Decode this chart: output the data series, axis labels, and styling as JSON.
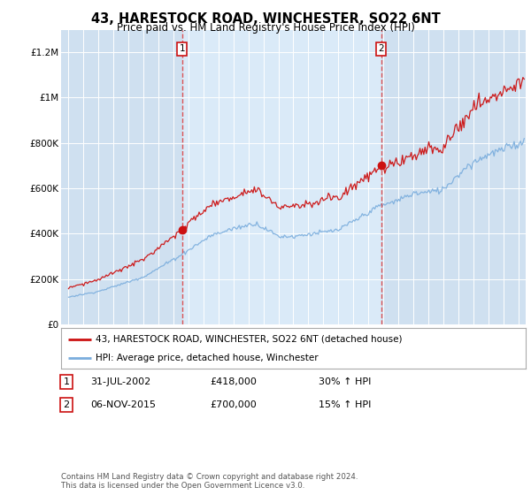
{
  "title": "43, HARESTOCK ROAD, WINCHESTER, SO22 6NT",
  "subtitle": "Price paid vs. HM Land Registry's House Price Index (HPI)",
  "legend_line1": "43, HARESTOCK ROAD, WINCHESTER, SO22 6NT (detached house)",
  "legend_line2": "HPI: Average price, detached house, Winchester",
  "table": [
    {
      "num": "1",
      "date": "31-JUL-2002",
      "price": "£418,000",
      "hpi": "30% ↑ HPI"
    },
    {
      "num": "2",
      "date": "06-NOV-2015",
      "price": "£700,000",
      "hpi": "15% ↑ HPI"
    }
  ],
  "footnote1": "Contains HM Land Registry data © Crown copyright and database right 2024.",
  "footnote2": "This data is licensed under the Open Government Licence v3.0.",
  "bg_color": "#cfe0f0",
  "highlight_color": "#daeaf8",
  "red_color": "#cc1111",
  "blue_color": "#7aaddd",
  "dashed_color": "#dd4444",
  "sale1_x": 2002.58,
  "sale1_y": 418000,
  "sale2_x": 2015.85,
  "sale2_y": 700000,
  "ylim": [
    0,
    1300000
  ],
  "xlim_start": 1994.5,
  "xlim_end": 2025.5,
  "yticks": [
    0,
    200000,
    400000,
    600000,
    800000,
    1000000,
    1200000
  ],
  "ylabels": [
    "£0",
    "£200K",
    "£400K",
    "£600K",
    "£800K",
    "£1M",
    "£1.2M"
  ]
}
